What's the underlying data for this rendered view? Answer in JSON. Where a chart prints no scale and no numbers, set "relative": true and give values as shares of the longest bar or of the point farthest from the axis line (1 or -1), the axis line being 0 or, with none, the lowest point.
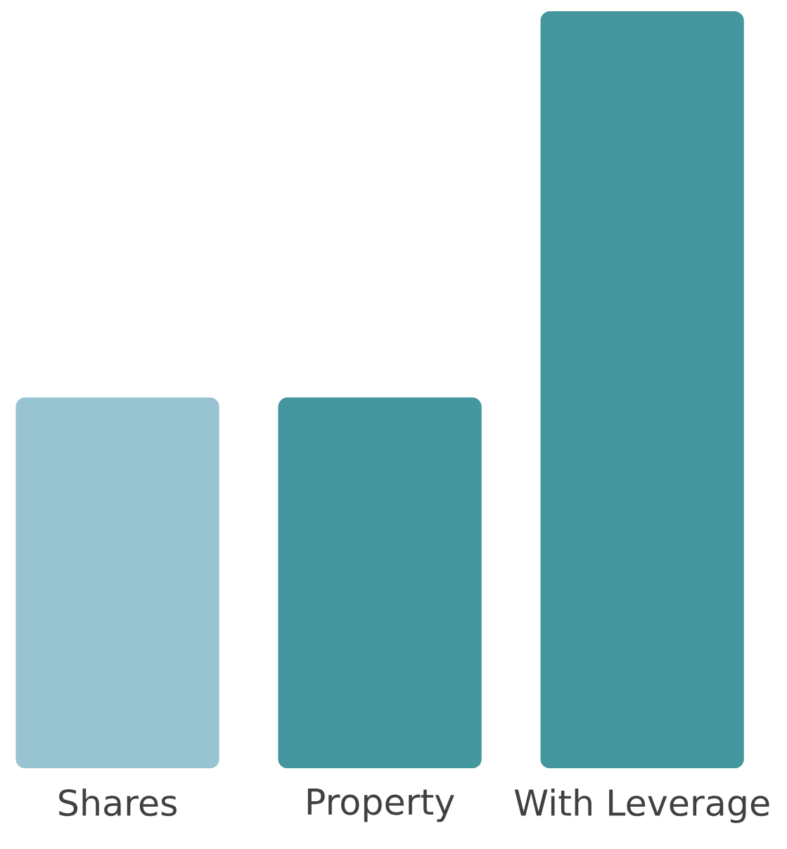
{
  "chart_data": {
    "type": "bar",
    "relative": true,
    "categories": [
      "Shares",
      "Property",
      "With Leverage"
    ],
    "values": [
      0.49,
      0.49,
      1
    ],
    "colors": [
      "#98c3d1",
      "#44979f",
      "#44979f"
    ]
  }
}
